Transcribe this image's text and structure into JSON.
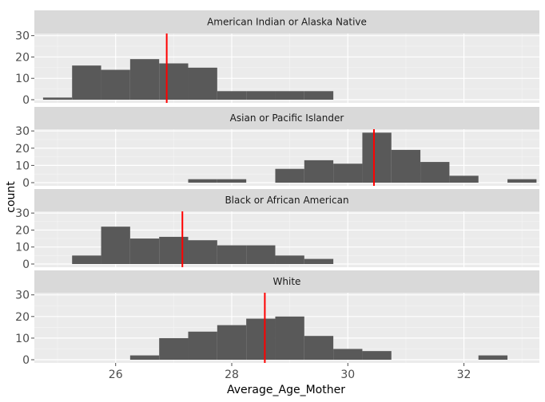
{
  "chart_data": {
    "type": "histogram",
    "xlabel": "Average_Age_Mother",
    "ylabel": "count",
    "xlim": [
      24.6,
      33.3
    ],
    "ylim": [
      0,
      31
    ],
    "x_ticks": [
      26,
      28,
      30,
      32
    ],
    "y_ticks": [
      0,
      10,
      20,
      30
    ],
    "bin_width": 0.5,
    "bar_color": "#595959",
    "mean_line_color": "#ff0000",
    "panel_background": "#ebebeb",
    "strip_background": "#d9d9d9",
    "grid": true,
    "panels": [
      {
        "label": "American Indian or Alaska Native",
        "mean_line": 26.88,
        "bins": [
          {
            "x0": 24.75,
            "x1": 25.25,
            "count": 1
          },
          {
            "x0": 25.25,
            "x1": 25.75,
            "count": 16
          },
          {
            "x0": 25.75,
            "x1": 26.25,
            "count": 14
          },
          {
            "x0": 26.25,
            "x1": 26.75,
            "count": 19
          },
          {
            "x0": 26.75,
            "x1": 27.25,
            "count": 17
          },
          {
            "x0": 27.25,
            "x1": 27.75,
            "count": 15
          },
          {
            "x0": 27.75,
            "x1": 28.25,
            "count": 4
          },
          {
            "x0": 28.25,
            "x1": 28.75,
            "count": 4
          },
          {
            "x0": 28.75,
            "x1": 29.25,
            "count": 4
          },
          {
            "x0": 29.25,
            "x1": 29.75,
            "count": 4
          }
        ]
      },
      {
        "label": "Asian or Pacific Islander",
        "mean_line": 30.45,
        "bins": [
          {
            "x0": 27.25,
            "x1": 27.75,
            "count": 2
          },
          {
            "x0": 27.75,
            "x1": 28.25,
            "count": 2
          },
          {
            "x0": 28.75,
            "x1": 29.25,
            "count": 8
          },
          {
            "x0": 29.25,
            "x1": 29.75,
            "count": 13
          },
          {
            "x0": 29.75,
            "x1": 30.25,
            "count": 11
          },
          {
            "x0": 30.25,
            "x1": 30.75,
            "count": 29
          },
          {
            "x0": 30.75,
            "x1": 31.25,
            "count": 19
          },
          {
            "x0": 31.25,
            "x1": 31.75,
            "count": 12
          },
          {
            "x0": 31.75,
            "x1": 32.25,
            "count": 4
          },
          {
            "x0": 32.75,
            "x1": 33.25,
            "count": 2
          }
        ]
      },
      {
        "label": "Black or African American",
        "mean_line": 27.15,
        "bins": [
          {
            "x0": 25.25,
            "x1": 25.75,
            "count": 5
          },
          {
            "x0": 25.75,
            "x1": 26.25,
            "count": 22
          },
          {
            "x0": 26.25,
            "x1": 26.75,
            "count": 15
          },
          {
            "x0": 26.75,
            "x1": 27.25,
            "count": 16
          },
          {
            "x0": 27.25,
            "x1": 27.75,
            "count": 14
          },
          {
            "x0": 27.75,
            "x1": 28.25,
            "count": 11
          },
          {
            "x0": 28.25,
            "x1": 28.75,
            "count": 11
          },
          {
            "x0": 28.75,
            "x1": 29.25,
            "count": 5
          },
          {
            "x0": 29.25,
            "x1": 29.75,
            "count": 3
          }
        ]
      },
      {
        "label": "White",
        "mean_line": 28.57,
        "bins": [
          {
            "x0": 26.25,
            "x1": 26.75,
            "count": 2
          },
          {
            "x0": 26.75,
            "x1": 27.25,
            "count": 10
          },
          {
            "x0": 27.25,
            "x1": 27.75,
            "count": 13
          },
          {
            "x0": 27.75,
            "x1": 28.25,
            "count": 16
          },
          {
            "x0": 28.25,
            "x1": 28.75,
            "count": 19
          },
          {
            "x0": 28.75,
            "x1": 29.25,
            "count": 20
          },
          {
            "x0": 29.25,
            "x1": 29.75,
            "count": 11
          },
          {
            "x0": 29.75,
            "x1": 30.25,
            "count": 5
          },
          {
            "x0": 30.25,
            "x1": 30.75,
            "count": 4
          },
          {
            "x0": 32.25,
            "x1": 32.75,
            "count": 2
          }
        ]
      }
    ]
  }
}
